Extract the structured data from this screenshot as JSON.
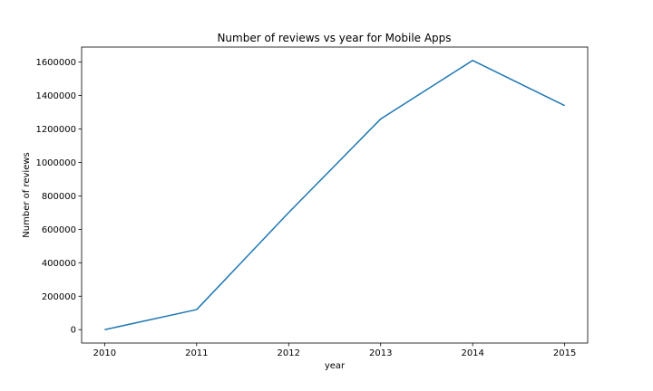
{
  "chart_data": {
    "type": "line",
    "title": "Number of reviews vs year for Mobile Apps",
    "xlabel": "year",
    "ylabel": "Number of reviews",
    "x": [
      2010,
      2011,
      2012,
      2013,
      2014,
      2015
    ],
    "series": [
      {
        "values": [
          0,
          120000,
          700000,
          1260000,
          1610000,
          1340000
        ],
        "color": "#1f77b4"
      }
    ],
    "xticks": [
      2010,
      2011,
      2012,
      2013,
      2014,
      2015
    ],
    "yticks": [
      0,
      200000,
      400000,
      600000,
      800000,
      1000000,
      1200000,
      1400000,
      1600000
    ],
    "ylim": [
      -80000,
      1690000
    ],
    "xlim": [
      2009.75,
      2015.25
    ],
    "grid": false
  }
}
